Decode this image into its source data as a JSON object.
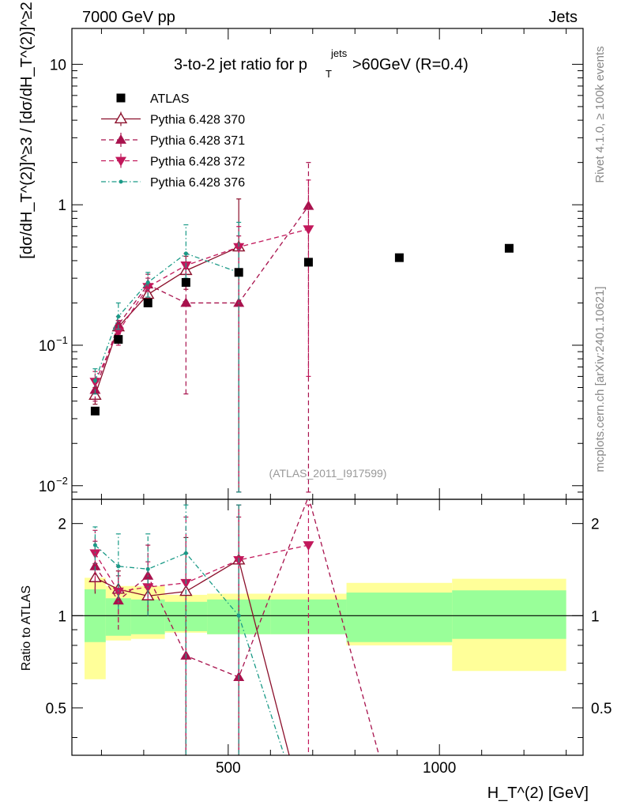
{
  "header": {
    "left": "7000 GeV pp",
    "right": "Jets"
  },
  "side_labels": {
    "rivet": "Rivet 4.1.0, ≥ 100k events",
    "mcplots": "mcplots.cern.ch [arXiv:2401.10621]"
  },
  "watermark": "(ATLAS_2011_I917599)",
  "chart_data": {
    "type": "scatter",
    "title": "3-to-2 jet ratio for p_T^jets > 60GeV (R=0.4)",
    "title_parts": {
      "pre": "3-to-2 jet ratio for p",
      "sub": "T",
      "sup": "jets",
      "post": ">60GeV (R=0.4)"
    },
    "xlabel": "H_T^(2) [GeV]",
    "ylabel": "[dσ/dH_T^(2)]^≥3 / [dσ/dH_T^(2)]^≥2",
    "ratio_ylabel": "Ratio to ATLAS",
    "xlim": [
      130,
      1340
    ],
    "ylim": [
      0.008,
      18
    ],
    "ratio_ylim": [
      0.35,
      2.4
    ],
    "x_ticks": [
      {
        "v": 500,
        "label": "500"
      },
      {
        "v": 1000,
        "label": "1000"
      }
    ],
    "y_ticks": [
      {
        "v": 10,
        "label": "10"
      },
      {
        "v": 1,
        "label": "1"
      },
      {
        "v": 0.1,
        "label": "10^-1"
      },
      {
        "v": 0.01,
        "label": "10^-2"
      }
    ],
    "ratio_ticks": [
      {
        "v": 0.5,
        "label": "0.5"
      },
      {
        "v": 1,
        "label": "1"
      },
      {
        "v": 2,
        "label": "2"
      }
    ],
    "bins": [
      {
        "lo": 160,
        "hi": 210,
        "center": 185
      },
      {
        "lo": 210,
        "hi": 270,
        "center": 240
      },
      {
        "lo": 270,
        "hi": 350,
        "center": 310
      },
      {
        "lo": 350,
        "hi": 450,
        "center": 400
      },
      {
        "lo": 450,
        "hi": 600,
        "center": 525
      },
      {
        "lo": 600,
        "hi": 780,
        "center": 690
      },
      {
        "lo": 780,
        "hi": 1030,
        "center": 905
      },
      {
        "lo": 1030,
        "hi": 1300,
        "center": 1165
      }
    ],
    "atlas": {
      "name": "ATLAS",
      "values": [
        0.034,
        0.11,
        0.2,
        0.28,
        0.33,
        0.39,
        0.42,
        0.49
      ],
      "band_inner": [
        [
          0.82,
          1.22
        ],
        [
          0.86,
          1.14
        ],
        [
          0.87,
          1.13
        ],
        [
          0.89,
          1.11
        ],
        [
          0.87,
          1.13
        ],
        [
          0.87,
          1.13
        ],
        [
          0.82,
          1.19
        ],
        [
          0.84,
          1.21
        ]
      ],
      "band_outer": [
        [
          0.62,
          1.33
        ],
        [
          0.83,
          1.25
        ],
        [
          0.84,
          1.25
        ],
        [
          0.88,
          1.17
        ],
        [
          0.87,
          1.18
        ],
        [
          0.87,
          1.18
        ],
        [
          0.8,
          1.28
        ],
        [
          0.66,
          1.32
        ]
      ]
    },
    "series": [
      {
        "name": "Pythia 6.428 370",
        "color": "#8b0f2b",
        "marker": "triangle-up-open",
        "dash": "solid",
        "values": [
          0.044,
          0.135,
          0.23,
          0.34,
          0.5
        ],
        "err": [
          [
            0.038,
            0.05
          ],
          [
            0.12,
            0.15
          ],
          [
            0.2,
            0.26
          ],
          [
            0.25,
            0.43
          ],
          [
            0.009,
            1.1
          ]
        ],
        "ratio": [
          1.33,
          1.22,
          1.16,
          1.2,
          1.52,
          0.2
        ],
        "ratio_err": [
          [
            1.18,
            1.48
          ],
          [
            1.1,
            1.4
          ],
          [
            1.0,
            1.35
          ],
          [
            0.3,
            1.8
          ],
          [
            0.3,
            2.3
          ],
          null
        ]
      },
      {
        "name": "Pythia 6.428 371",
        "color": "#a8124d",
        "marker": "triangle-up",
        "dash": "dashed",
        "values": [
          0.048,
          0.14,
          0.27,
          0.2,
          0.2,
          0.98
        ],
        "err": [
          [
            0.04,
            0.057
          ],
          [
            0.12,
            0.16
          ],
          [
            0.22,
            0.32
          ],
          [
            0.045,
            0.35
          ],
          [
            0.009,
            0.6
          ],
          [
            0.009,
            2.0
          ]
        ],
        "ratio": [
          1.45,
          1.12,
          1.35,
          0.74,
          0.63,
          2.45,
          0.2
        ],
        "ratio_err": [
          [
            1.2,
            1.75
          ],
          [
            0.9,
            1.35
          ],
          [
            1.15,
            1.7
          ],
          [
            0.3,
            1.6
          ],
          [
            0.3,
            2.1
          ],
          null,
          null
        ]
      },
      {
        "name": "Pythia 6.428 372",
        "color": "#c2185b",
        "marker": "triangle-down",
        "dash": "dashed",
        "values": [
          0.055,
          0.125,
          0.26,
          0.37,
          0.5,
          0.67
        ],
        "err": [
          [
            0.045,
            0.065
          ],
          [
            0.1,
            0.15
          ],
          [
            0.2,
            0.3
          ],
          [
            0.28,
            0.45
          ],
          [
            0.009,
            0.7
          ],
          [
            0.06,
            1.5
          ]
        ],
        "ratio": [
          1.6,
          1.2,
          1.24,
          1.28,
          1.52,
          1.7
        ],
        "ratio_err": [
          [
            1.3,
            1.9
          ],
          [
            0.95,
            1.45
          ],
          [
            1.0,
            1.5
          ],
          [
            0.3,
            2.1
          ],
          [
            0.3,
            2.3
          ],
          [
            0.3,
            2.3
          ]
        ]
      },
      {
        "name": "Pythia 6.428 376",
        "color": "#1a9a87",
        "marker": "small-circle",
        "dash": "dashdot",
        "values": [
          0.056,
          0.16,
          0.28,
          0.45,
          0.33
        ],
        "err": [
          [
            0.045,
            0.068
          ],
          [
            0.13,
            0.2
          ],
          [
            0.22,
            0.33
          ],
          [
            0.3,
            0.72
          ],
          [
            0.009,
            0.75
          ]
        ],
        "ratio": [
          1.7,
          1.45,
          1.42,
          1.6,
          1.0,
          0.2
        ],
        "ratio_err": [
          [
            1.4,
            1.95
          ],
          [
            1.05,
            1.85
          ],
          [
            1.0,
            1.85
          ],
          [
            0.3,
            2.3
          ],
          [
            0.3,
            2.3
          ],
          null
        ]
      }
    ]
  }
}
